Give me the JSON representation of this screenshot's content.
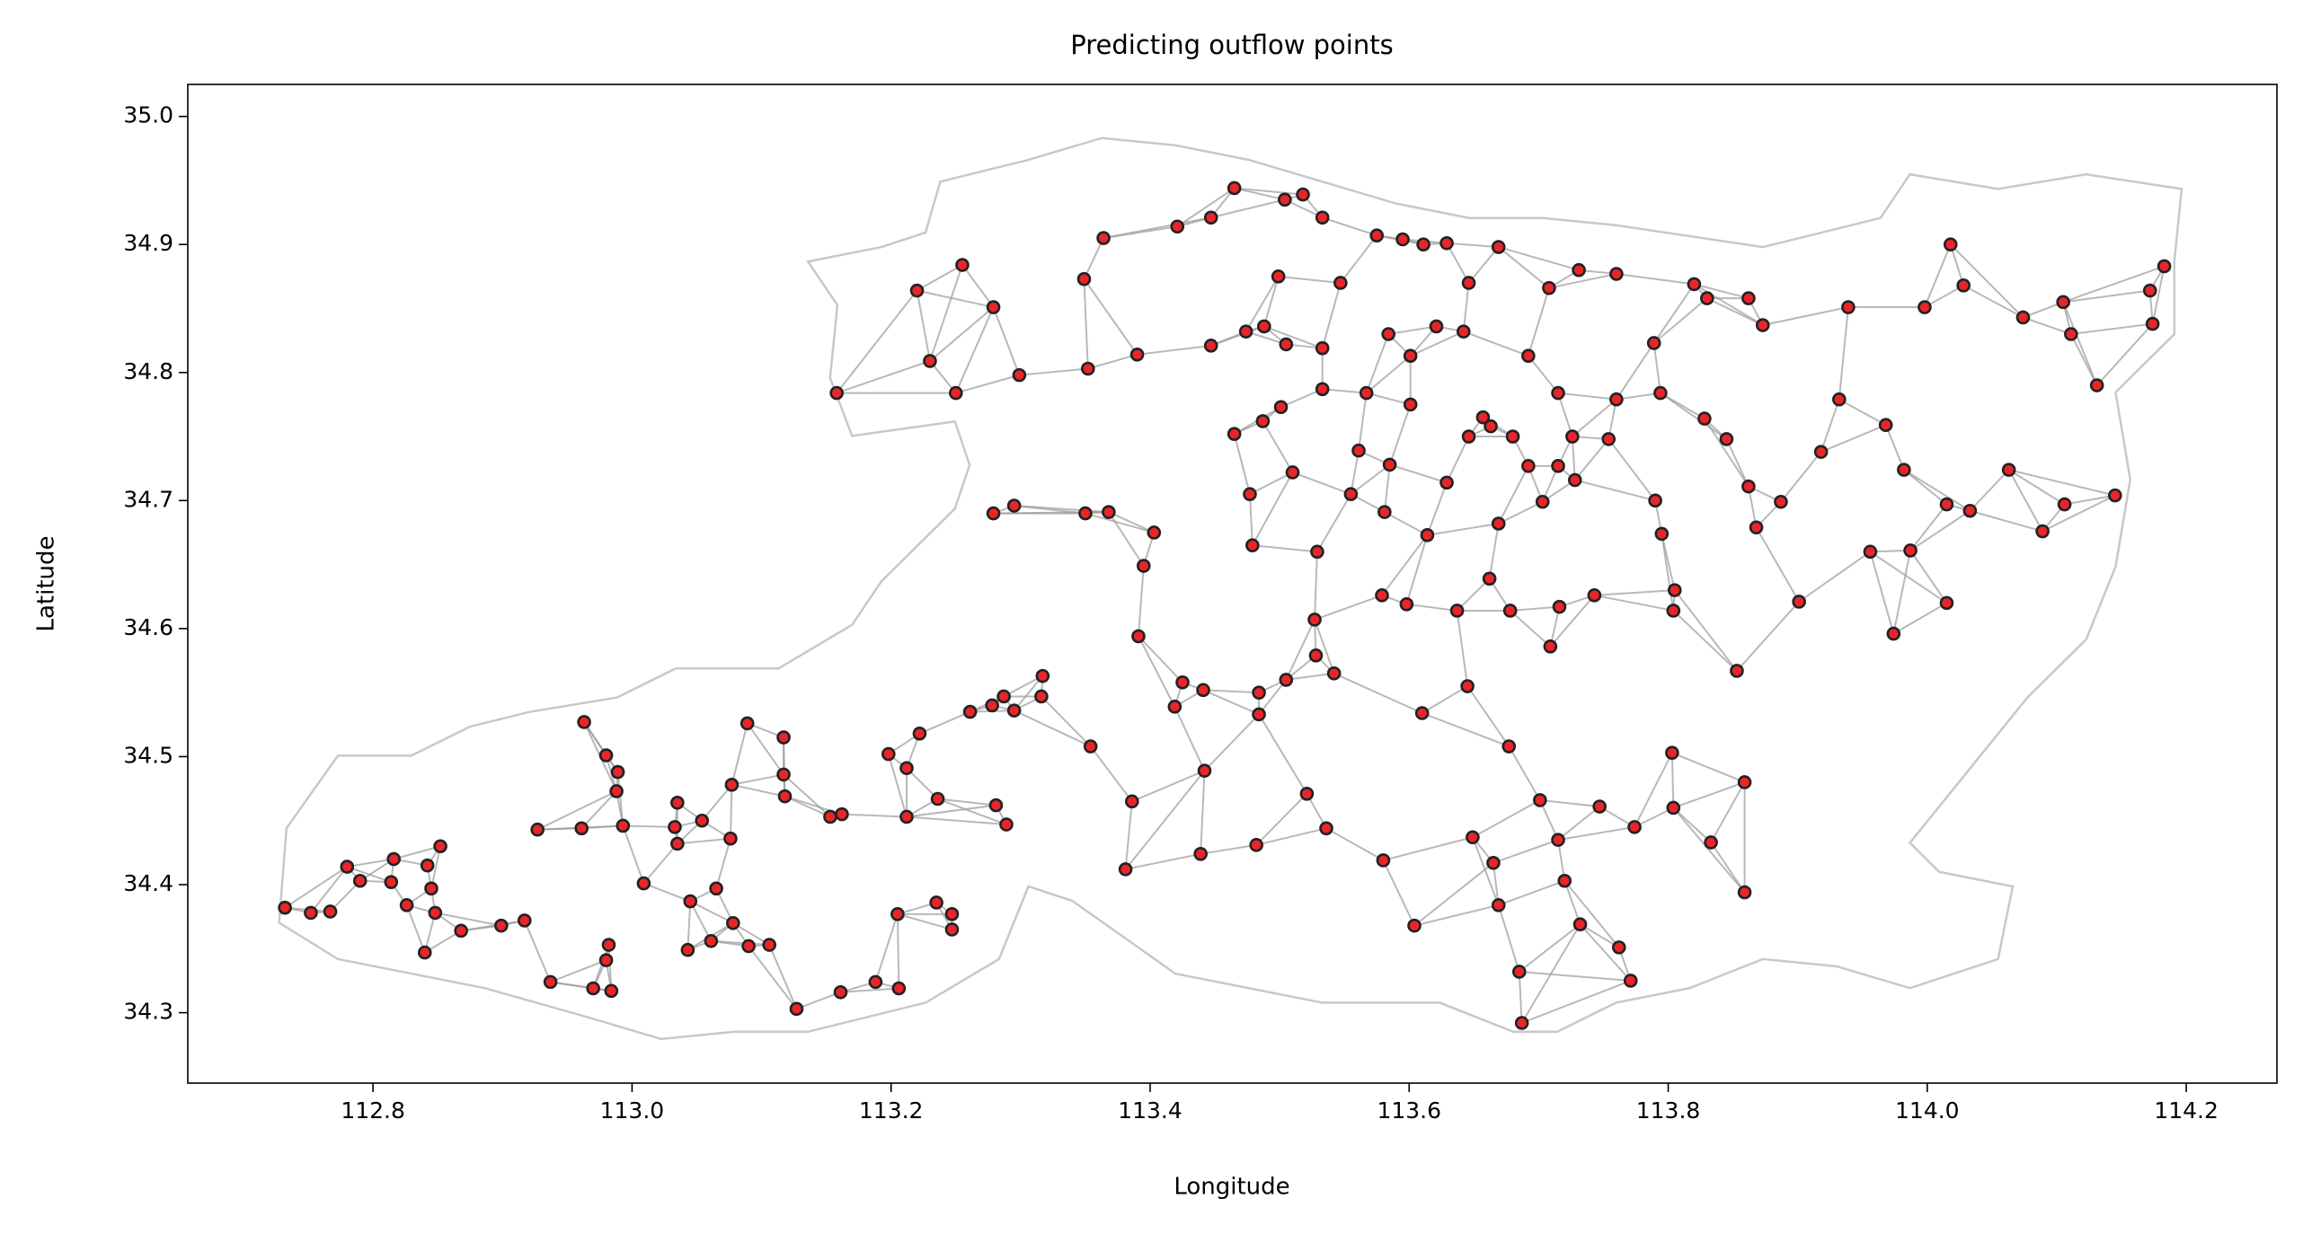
{
  "chart_data": {
    "type": "scatter",
    "title": "Predicting outflow points",
    "x_label": "Longitude",
    "y_label": "Latitude",
    "color": "#e8262a",
    "edgecolor": "#222222",
    "xlim": [
      112.657,
      114.27
    ],
    "ylim": [
      34.245,
      35.025
    ],
    "xticks": [
      112.8,
      {
        "value": 113,
        "label": "113.0"
      },
      113.2,
      113.4,
      113.6,
      113.8,
      {
        "value": 114,
        "label": "114.0"
      },
      114.2
    ],
    "yticks": [
      {
        "value": 35,
        "label": "35.0"
      },
      34.9,
      34.8,
      34.7,
      34.6,
      34.5,
      34.4,
      34.3
    ],
    "x": [
      112.732,
      112.752,
      112.767,
      112.78,
      112.79,
      112.816,
      112.814,
      112.826,
      112.842,
      112.852,
      112.845,
      112.848,
      112.84,
      112.868,
      112.899,
      112.917,
      112.927,
      112.937,
      112.961,
      112.963,
      112.98,
      112.989,
      112.988,
      112.993,
      112.982,
      112.98,
      112.984,
      112.97,
      113.009,
      113.033,
      113.035,
      113.035,
      113.043,
      113.045,
      113.054,
      113.061,
      113.065,
      113.076,
      113.077,
      113.078,
      113.089,
      113.09,
      113.106,
      113.117,
      113.117,
      113.118,
      113.127,
      113.153,
      113.162,
      113.161,
      113.188,
      113.198,
      113.206,
      113.212,
      113.212,
      113.222,
      113.205,
      113.236,
      113.235,
      113.247,
      113.247,
      113.261,
      113.278,
      113.287,
      113.295,
      113.316,
      113.317,
      113.281,
      113.289,
      113.354,
      113.381,
      113.391,
      113.386,
      113.419,
      113.425,
      113.441,
      113.442,
      113.439,
      113.482,
      113.484,
      113.484,
      113.505,
      113.521,
      113.527,
      113.528,
      113.542,
      113.536,
      113.58,
      113.604,
      113.61,
      113.645,
      113.649,
      113.665,
      113.669,
      113.677,
      113.685,
      113.687,
      113.701,
      113.715,
      113.72,
      113.732,
      113.747,
      113.762,
      113.771,
      113.774,
      113.803,
      113.804,
      113.833,
      113.859,
      113.859,
      113.853,
      113.158,
      113.22,
      113.255,
      113.23,
      113.25,
      113.279,
      113.279,
      113.295,
      113.299,
      113.349,
      113.364,
      113.352,
      113.35,
      113.368,
      113.395,
      113.403,
      113.39,
      113.421,
      113.465,
      113.447,
      113.447,
      113.477,
      113.479,
      113.465,
      113.518,
      113.504,
      113.488,
      113.499,
      113.533,
      113.547,
      113.575,
      113.595,
      113.611,
      113.629,
      113.669,
      113.646,
      113.708,
      113.731,
      113.76,
      113.82,
      113.789,
      113.83,
      113.862,
      113.873,
      113.939,
      113.998,
      114.018,
      114.028,
      114.074,
      114.105,
      114.111,
      114.183,
      114.172,
      114.174,
      114.131,
      114.063,
      114.033,
      114.015,
      114.089,
      114.106,
      114.145,
      113.987,
      114.015,
      113.974,
      113.918,
      113.932,
      113.968,
      113.982,
      113.956,
      113.901,
      113.887,
      113.862,
      113.868,
      113.845,
      113.828,
      113.79,
      113.795,
      113.805,
      113.804,
      113.743,
      113.716,
      113.709,
      113.678,
      113.662,
      113.637,
      113.598,
      113.579,
      113.581,
      113.614,
      113.585,
      113.555,
      113.51,
      113.529,
      113.533,
      113.567,
      113.601,
      113.646,
      113.663,
      113.657,
      113.68,
      113.692,
      113.715,
      113.728,
      113.703,
      113.669,
      113.726,
      113.754,
      113.76,
      113.794,
      113.715,
      113.692,
      113.642,
      113.621,
      113.601,
      113.584,
      113.533,
      113.505,
      113.474,
      113.487,
      113.501,
      113.561,
      113.629
    ],
    "y": [
      34.382,
      34.378,
      34.379,
      34.414,
      34.403,
      34.42,
      34.402,
      34.384,
      34.415,
      34.43,
      34.397,
      34.378,
      34.347,
      34.364,
      34.368,
      34.372,
      34.443,
      34.324,
      34.444,
      34.527,
      34.501,
      34.488,
      34.473,
      34.446,
      34.353,
      34.341,
      34.317,
      34.319,
      34.401,
      34.445,
      34.432,
      34.464,
      34.349,
      34.387,
      34.45,
      34.356,
      34.397,
      34.436,
      34.478,
      34.37,
      34.526,
      34.352,
      34.353,
      34.515,
      34.486,
      34.469,
      34.303,
      34.453,
      34.455,
      34.316,
      34.324,
      34.502,
      34.319,
      34.491,
      34.453,
      34.518,
      34.377,
      34.467,
      34.386,
      34.377,
      34.365,
      34.535,
      34.54,
      34.547,
      34.536,
      34.547,
      34.563,
      34.462,
      34.447,
      34.508,
      34.412,
      34.594,
      34.465,
      34.539,
      34.558,
      34.552,
      34.489,
      34.424,
      34.431,
      34.55,
      34.533,
      34.56,
      34.471,
      34.607,
      34.579,
      34.565,
      34.444,
      34.419,
      34.368,
      34.534,
      34.555,
      34.437,
      34.417,
      34.384,
      34.508,
      34.332,
      34.292,
      34.466,
      34.435,
      34.403,
      34.369,
      34.461,
      34.351,
      34.325,
      34.445,
      34.503,
      34.46,
      34.433,
      34.394,
      34.48,
      34.567,
      34.784,
      34.864,
      34.884,
      34.809,
      34.784,
      34.851,
      34.69,
      34.696,
      34.798,
      34.873,
      34.905,
      34.803,
      34.69,
      34.691,
      34.649,
      34.675,
      34.814,
      34.914,
      34.944,
      34.921,
      34.821,
      34.705,
      34.665,
      34.752,
      34.939,
      34.935,
      34.836,
      34.875,
      34.921,
      34.87,
      34.907,
      34.904,
      34.9,
      34.901,
      34.898,
      34.87,
      34.866,
      34.88,
      34.877,
      34.869,
      34.823,
      34.858,
      34.858,
      34.837,
      34.851,
      34.851,
      34.9,
      34.868,
      34.843,
      34.855,
      34.83,
      34.883,
      34.864,
      34.838,
      34.79,
      34.724,
      34.692,
      34.697,
      34.676,
      34.697,
      34.704,
      34.661,
      34.62,
      34.596,
      34.738,
      34.779,
      34.759,
      34.724,
      34.66,
      34.621,
      34.699,
      34.711,
      34.679,
      34.748,
      34.764,
      34.7,
      34.674,
      34.63,
      34.614,
      34.626,
      34.617,
      34.586,
      34.614,
      34.639,
      34.614,
      34.619,
      34.626,
      34.691,
      34.673,
      34.728,
      34.705,
      34.722,
      34.66,
      34.787,
      34.784,
      34.775,
      34.75,
      34.758,
      34.765,
      34.75,
      34.727,
      34.727,
      34.716,
      34.699,
      34.682,
      34.75,
      34.748,
      34.779,
      34.784,
      34.784,
      34.813,
      34.832,
      34.836,
      34.813,
      34.83,
      34.819,
      34.822,
      34.832,
      34.762,
      34.773,
      34.739,
      34.714
    ]
  }
}
